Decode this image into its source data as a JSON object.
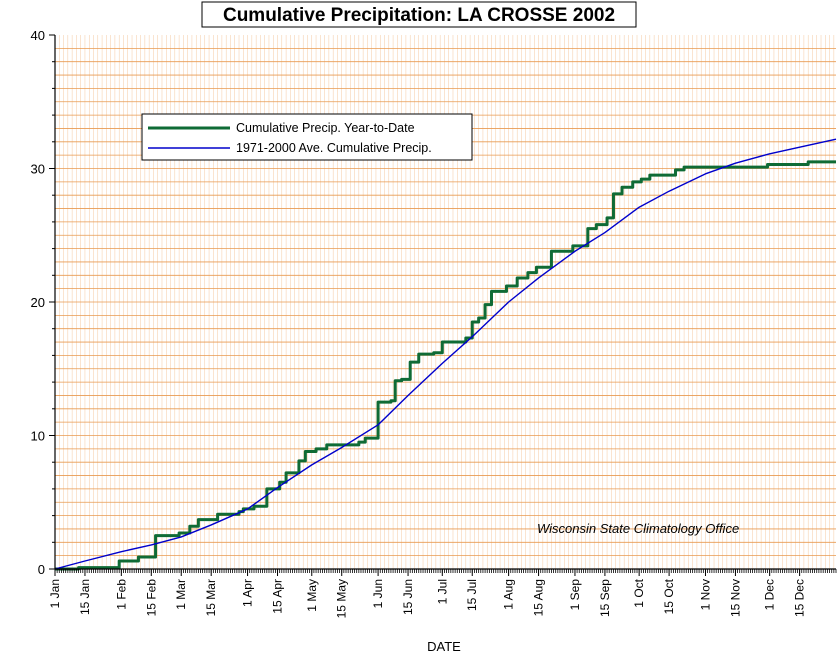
{
  "chart_data": {
    "type": "line",
    "title": "Cumulative Precipitation: LA CROSSE 2002",
    "xlabel": "DATE",
    "ylabel": "",
    "ylim": [
      0,
      40
    ],
    "y_ticks": [
      0,
      10,
      20,
      30,
      40
    ],
    "x_range_days": [
      0,
      365
    ],
    "x_tick_labels": [
      {
        "day": 0,
        "label": "1 Jan"
      },
      {
        "day": 14,
        "label": "15 Jan"
      },
      {
        "day": 31,
        "label": "1 Feb"
      },
      {
        "day": 45,
        "label": "15 Feb"
      },
      {
        "day": 59,
        "label": "1 Mar"
      },
      {
        "day": 73,
        "label": "15 Mar"
      },
      {
        "day": 90,
        "label": "1 Apr"
      },
      {
        "day": 104,
        "label": "15 Apr"
      },
      {
        "day": 120,
        "label": "1 May"
      },
      {
        "day": 134,
        "label": "15 May"
      },
      {
        "day": 151,
        "label": "1 Jun"
      },
      {
        "day": 165,
        "label": "15 Jun"
      },
      {
        "day": 181,
        "label": "1 Jul"
      },
      {
        "day": 195,
        "label": "15 Jul"
      },
      {
        "day": 212,
        "label": "1 Aug"
      },
      {
        "day": 226,
        "label": "15 Aug"
      },
      {
        "day": 243,
        "label": "1 Sep"
      },
      {
        "day": 257,
        "label": "15 Sep"
      },
      {
        "day": 273,
        "label": "1 Oct"
      },
      {
        "day": 287,
        "label": "15 Oct"
      },
      {
        "day": 304,
        "label": "1 Nov"
      },
      {
        "day": 318,
        "label": "15 Nov"
      },
      {
        "day": 334,
        "label": "1 Dec"
      },
      {
        "day": 348,
        "label": "15 Dec"
      }
    ],
    "grid": true,
    "legend_position": "top-left",
    "annotation": "Wisconsin State Climatology Office",
    "series": [
      {
        "name": "Cumulative Precip. Year-to-Date",
        "color": "#0f6b35",
        "step": true,
        "points": [
          [
            0,
            0
          ],
          [
            11,
            0.1
          ],
          [
            30,
            0.6
          ],
          [
            39,
            0.9
          ],
          [
            47,
            2.5
          ],
          [
            58,
            2.7
          ],
          [
            63,
            3.2
          ],
          [
            67,
            3.7
          ],
          [
            76,
            4.1
          ],
          [
            86,
            4.3
          ],
          [
            88,
            4.5
          ],
          [
            93,
            4.7
          ],
          [
            99,
            6.0
          ],
          [
            105,
            6.5
          ],
          [
            108,
            7.2
          ],
          [
            114,
            8.1
          ],
          [
            117,
            8.8
          ],
          [
            122,
            9.0
          ],
          [
            127,
            9.3
          ],
          [
            142,
            9.5
          ],
          [
            145,
            9.8
          ],
          [
            151,
            12.5
          ],
          [
            157,
            12.6
          ],
          [
            159,
            14.1
          ],
          [
            162,
            14.2
          ],
          [
            166,
            15.5
          ],
          [
            170,
            16.1
          ],
          [
            177,
            16.2
          ],
          [
            181,
            17.0
          ],
          [
            192,
            17.3
          ],
          [
            195,
            18.5
          ],
          [
            198,
            18.8
          ],
          [
            201,
            19.8
          ],
          [
            204,
            20.8
          ],
          [
            211,
            21.2
          ],
          [
            216,
            21.8
          ],
          [
            221,
            22.2
          ],
          [
            225,
            22.6
          ],
          [
            232,
            23.8
          ],
          [
            242,
            24.2
          ],
          [
            249,
            25.5
          ],
          [
            253,
            25.8
          ],
          [
            258,
            26.3
          ],
          [
            261,
            28.1
          ],
          [
            265,
            28.6
          ],
          [
            270,
            29.0
          ],
          [
            274,
            29.2
          ],
          [
            278,
            29.5
          ],
          [
            290,
            29.9
          ],
          [
            294,
            30.1
          ],
          [
            333,
            30.3
          ],
          [
            352,
            30.5
          ],
          [
            365,
            30.5
          ]
        ]
      },
      {
        "name": "1971-2000 Ave. Cumulative Precip.",
        "color": "#0000cc",
        "step": false,
        "points": [
          [
            0,
            0
          ],
          [
            14,
            0.6
          ],
          [
            31,
            1.3
          ],
          [
            45,
            1.8
          ],
          [
            59,
            2.4
          ],
          [
            73,
            3.3
          ],
          [
            90,
            4.5
          ],
          [
            104,
            6.1
          ],
          [
            120,
            7.8
          ],
          [
            134,
            9.1
          ],
          [
            151,
            10.8
          ],
          [
            165,
            13.0
          ],
          [
            181,
            15.4
          ],
          [
            195,
            17.4
          ],
          [
            212,
            20.0
          ],
          [
            226,
            21.8
          ],
          [
            243,
            23.8
          ],
          [
            257,
            25.2
          ],
          [
            273,
            27.1
          ],
          [
            287,
            28.3
          ],
          [
            304,
            29.6
          ],
          [
            318,
            30.4
          ],
          [
            334,
            31.1
          ],
          [
            348,
            31.6
          ],
          [
            365,
            32.2
          ]
        ]
      }
    ]
  }
}
